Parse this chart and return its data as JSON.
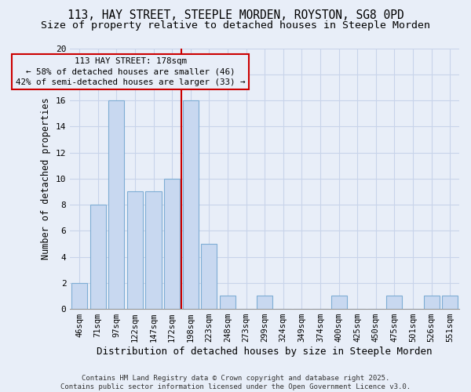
{
  "title_line1": "113, HAY STREET, STEEPLE MORDEN, ROYSTON, SG8 0PD",
  "title_line2": "Size of property relative to detached houses in Steeple Morden",
  "xlabel": "Distribution of detached houses by size in Steeple Morden",
  "ylabel": "Number of detached properties",
  "categories": [
    "46sqm",
    "71sqm",
    "97sqm",
    "122sqm",
    "147sqm",
    "172sqm",
    "198sqm",
    "223sqm",
    "248sqm",
    "273sqm",
    "299sqm",
    "324sqm",
    "349sqm",
    "374sqm",
    "400sqm",
    "425sqm",
    "450sqm",
    "475sqm",
    "501sqm",
    "526sqm",
    "551sqm"
  ],
  "values": [
    2,
    8,
    16,
    9,
    9,
    10,
    16,
    5,
    1,
    0,
    1,
    0,
    0,
    0,
    1,
    0,
    0,
    1,
    0,
    1,
    1
  ],
  "bar_color": "#c8d8f0",
  "bar_edge_color": "#7eadd4",
  "bar_width": 0.85,
  "grid_color": "#c8d4ea",
  "bg_color": "#e8eef8",
  "annotation_box_color": "#cc0000",
  "vline_color": "#cc0000",
  "vline_x": 5.5,
  "annotation_line1": "113 HAY STREET: 178sqm",
  "annotation_line2": "← 58% of detached houses are smaller (46)",
  "annotation_line3": "42% of semi-detached houses are larger (33) →",
  "annotation_fontsize": 7.8,
  "title_fontsize1": 10.5,
  "title_fontsize2": 9.5,
  "xlabel_fontsize": 9,
  "ylabel_fontsize": 8.5,
  "tick_fontsize": 7.5,
  "ylim": [
    0,
    20
  ],
  "yticks": [
    0,
    2,
    4,
    6,
    8,
    10,
    12,
    14,
    16,
    18,
    20
  ],
  "footer_text": "Contains HM Land Registry data © Crown copyright and database right 2025.\nContains public sector information licensed under the Open Government Licence v3.0."
}
